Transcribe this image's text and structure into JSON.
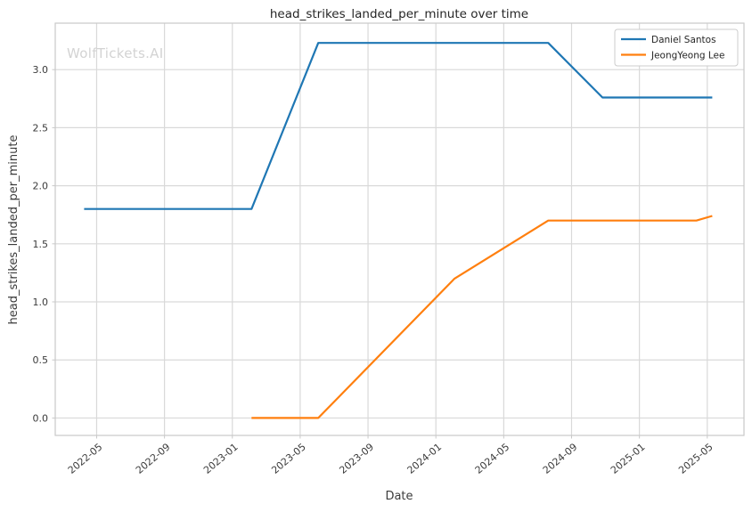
{
  "watermark": {
    "text": "WolfTickets.AI",
    "color": "#d3d3d3"
  },
  "chart_data": {
    "type": "line",
    "title": "head_strikes_landed_per_minute over time",
    "xlabel": "Date",
    "ylabel": "head_strikes_landed_per_minute",
    "x_tick_labels": [
      "2022-05",
      "2022-09",
      "2023-01",
      "2023-05",
      "2023-09",
      "2024-01",
      "2024-05",
      "2024-09",
      "2025-01",
      "2025-05"
    ],
    "y_tick_labels": [
      "0.0",
      "0.5",
      "1.0",
      "1.5",
      "2.0",
      "2.5",
      "3.0"
    ],
    "xlim": [
      "2022-02-18",
      "2025-07-06"
    ],
    "ylim": [
      -0.15,
      3.4
    ],
    "grid": true,
    "legend": {
      "position": "upper right",
      "entries": [
        {
          "label": "Daniel Santos",
          "color": "#1f77b4"
        },
        {
          "label": "JeongYeong Lee",
          "color": "#ff7f0e"
        }
      ]
    },
    "series": [
      {
        "name": "Daniel Santos",
        "color": "#1f77b4",
        "points": [
          [
            "2022-04-09",
            1.8
          ],
          [
            "2023-02-05",
            1.8
          ],
          [
            "2023-06-03",
            3.23
          ],
          [
            "2024-07-20",
            3.23
          ],
          [
            "2024-10-26",
            2.76
          ],
          [
            "2025-05-10",
            2.76
          ]
        ]
      },
      {
        "name": "JeongYeong Lee",
        "color": "#ff7f0e",
        "points": [
          [
            "2023-02-05",
            0.0
          ],
          [
            "2023-06-03",
            0.0
          ],
          [
            "2024-02-04",
            1.2
          ],
          [
            "2024-07-20",
            1.7
          ],
          [
            "2025-04-12",
            1.7
          ],
          [
            "2025-05-10",
            1.74
          ]
        ]
      }
    ],
    "colors": {
      "background": "#ffffff",
      "grid": "#d9d9d9",
      "spine": "#c9c9c9",
      "tick_text": "#3b3b3b",
      "title_text": "#262626",
      "legend_border": "#cccccc"
    }
  }
}
